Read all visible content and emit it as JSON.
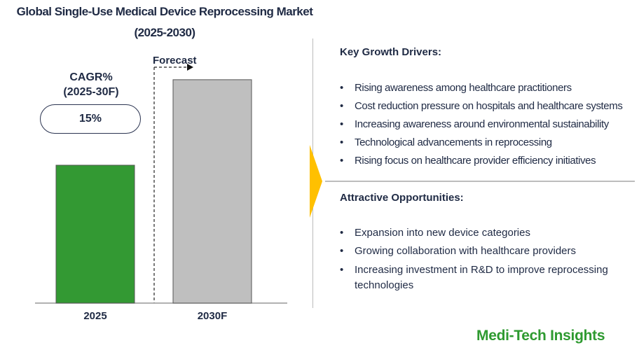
{
  "title_line1": "Global Single-Use Medical Device Reprocessing Market",
  "title_line2": "(2025-2030)",
  "cagr": {
    "label_line1": "CAGR%",
    "label_line2": "(2025-30F)",
    "value": "15%"
  },
  "forecast_label": "Forecast",
  "chart_data": {
    "type": "bar",
    "categories": [
      "2025",
      "2030F"
    ],
    "values": [
      100,
      162
    ],
    "value_unit": "relative bar height, unlabeled (2025 = 100)",
    "colors": [
      "#339933",
      "#bfbfbf"
    ],
    "grid": false,
    "title": "Global Single-Use Medical Device Reprocessing Market (2025-2030)"
  },
  "drivers": {
    "heading": "Key Growth Drivers:",
    "items": [
      "Rising awareness among healthcare practitioners",
      "Cost reduction pressure on hospitals and healthcare systems",
      "Increasing awareness around environmental sustainability",
      "Technological advancements in reprocessing",
      "Rising focus on healthcare provider efficiency initiatives"
    ]
  },
  "opportunities": {
    "heading": "Attractive Opportunities:",
    "items": [
      "Expansion into new device categories",
      "Growing collaboration with healthcare providers",
      "Increasing investment in R&D to improve reprocessing technologies"
    ]
  },
  "logo": "Medi-Tech Insights",
  "colors": {
    "accent": "#ffc000",
    "brand": "#2e9a30",
    "text": "#1f2a44"
  }
}
